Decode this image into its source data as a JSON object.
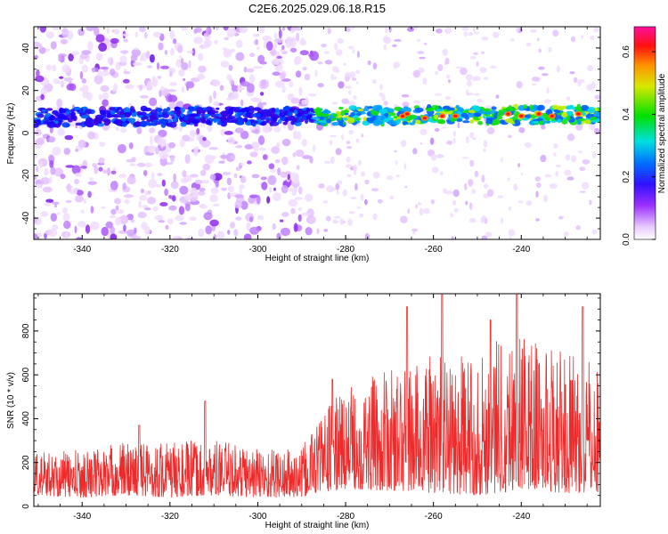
{
  "title": "C2E6.2025.029.06.18.R15",
  "colors": {
    "snr_line": "#ee2a2a",
    "axis": "#000000"
  },
  "chart_data": [
    {
      "type": "heatmap",
      "title": "C2E6.2025.029.06.18.R15",
      "xlabel": "Height of straight line (km)",
      "ylabel": "Frequency (Hz)",
      "xlim": [
        -351,
        -222
      ],
      "ylim": [
        -50,
        50
      ],
      "xticks": [
        -340,
        -320,
        -300,
        -280,
        -260,
        -240
      ],
      "yticks": [
        -40,
        -20,
        0,
        20,
        40
      ],
      "colorbar": {
        "label": "Normalized spectral amplitude",
        "range": [
          0.0,
          0.68
        ],
        "ticks": [
          0.0,
          0.2,
          0.4,
          0.6
        ],
        "colormap": "rainbow (white-violet-blue-cyan-green-yellow-red-magenta)"
      },
      "features": {
        "signal_band_center_hz": 8,
        "signal_band_halfwidth_hz": 4,
        "noise_transition_km": -287
      }
    },
    {
      "type": "line",
      "xlabel": "Height of straight line (km)",
      "ylabel": "SNR (10 * v/v)",
      "xlim": [
        -351,
        -222
      ],
      "ylim": [
        0,
        970
      ],
      "xticks": [
        -340,
        -320,
        -300,
        -280,
        -260,
        -240
      ],
      "yticks": [
        0,
        200,
        400,
        600,
        800
      ],
      "envelope": {
        "x": [
          -350,
          -340,
          -330,
          -320,
          -310,
          -300,
          -290,
          -287,
          -280,
          -270,
          -260,
          -250,
          -245,
          -240,
          -230,
          -222
        ],
        "typical_min": [
          50,
          40,
          50,
          40,
          50,
          40,
          40,
          60,
          80,
          70,
          60,
          50,
          60,
          80,
          60,
          60
        ],
        "typical_max": [
          250,
          260,
          300,
          300,
          300,
          280,
          260,
          400,
          550,
          620,
          700,
          680,
          820,
          800,
          700,
          650
        ]
      },
      "peaks": [
        {
          "x": -327,
          "y": 370
        },
        {
          "x": -312,
          "y": 480
        },
        {
          "x": -283,
          "y": 580
        },
        {
          "x": -266,
          "y": 910
        },
        {
          "x": -258,
          "y": 965
        },
        {
          "x": -247,
          "y": 850
        },
        {
          "x": -241,
          "y": 965
        },
        {
          "x": -226,
          "y": 910
        }
      ]
    }
  ]
}
